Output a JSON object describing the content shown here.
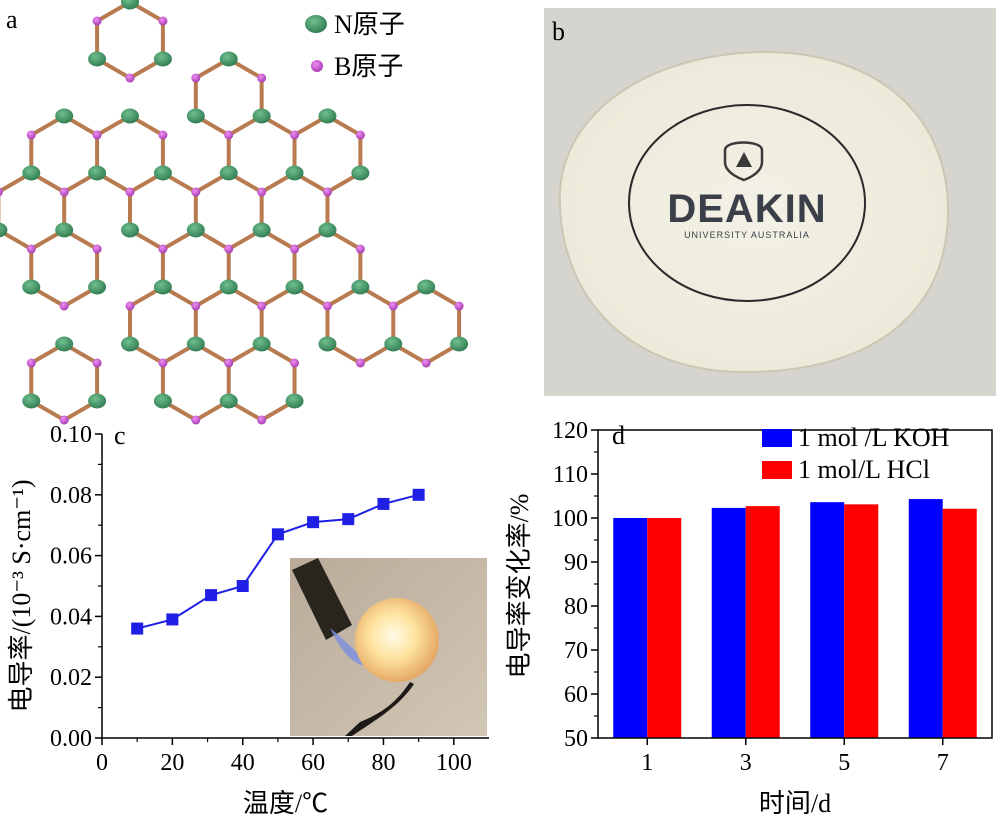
{
  "panels": {
    "a": {
      "letter": "a",
      "legend": [
        {
          "label": "N原子",
          "color": "#3f8f63"
        },
        {
          "label": "B原子",
          "color": "#c44fcf"
        }
      ],
      "bond_color": "#b87a4f"
    },
    "b": {
      "letter": "b",
      "logo_text": "DEAKIN",
      "logo_subtext": "UNIVERSITY AUSTRALIA"
    }
  },
  "chart_data": [
    {
      "panel": "c",
      "type": "line",
      "x": [
        10,
        20,
        31,
        40,
        50,
        60,
        70,
        80,
        90
      ],
      "y": [
        0.036,
        0.039,
        0.047,
        0.05,
        0.067,
        0.071,
        0.072,
        0.077,
        0.08
      ],
      "xlim": [
        0,
        110
      ],
      "ylim": [
        0,
        0.1
      ],
      "xticks": [
        "0",
        "20",
        "40",
        "60",
        "80",
        "100"
      ],
      "yticks": [
        "0.00",
        "0.02",
        "0.04",
        "0.06",
        "0.08",
        "0.10"
      ],
      "xlabel": "温度/℃",
      "ylabel": "电导率/(10⁻³ S·cm⁻¹)",
      "color": "#1f1fe6",
      "marker": "square",
      "grid": false
    },
    {
      "panel": "d",
      "type": "bar",
      "categories": [
        "1",
        "3",
        "5",
        "7"
      ],
      "series": [
        {
          "name": "1 mol /L KOH",
          "color": "#0000ff",
          "values": [
            100,
            102.3,
            103.6,
            104.3
          ]
        },
        {
          "name": "1 mol/L HCl",
          "color": "#ff0000",
          "values": [
            100,
            102.7,
            103.1,
            102.1
          ]
        }
      ],
      "ylim": [
        50,
        120
      ],
      "yticks": [
        "50",
        "60",
        "70",
        "80",
        "90",
        "100",
        "110",
        "120"
      ],
      "xlabel": "时间/d",
      "ylabel": "电导率变化率/%",
      "legend_position": "top-right",
      "grid": false
    }
  ]
}
